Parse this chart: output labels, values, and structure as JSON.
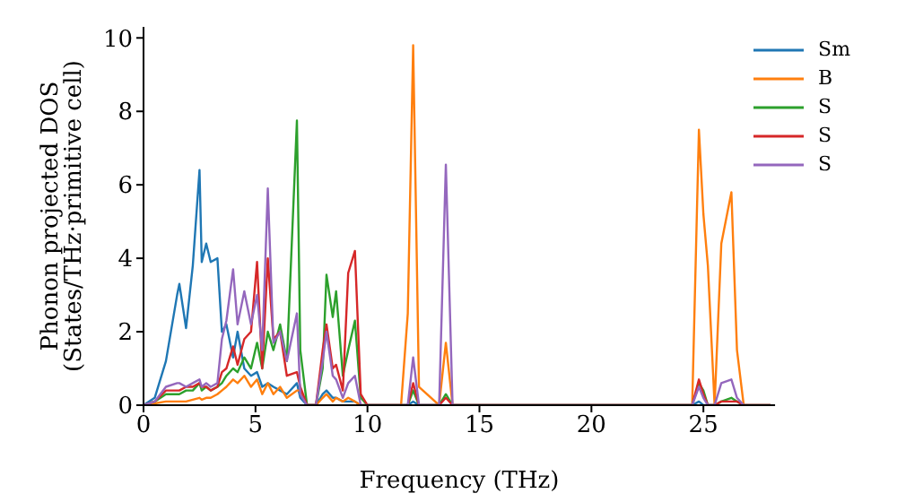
{
  "chart_data": {
    "type": "line",
    "xlabel": "Frequency (THz)",
    "ylabel": "Phonon projected DOS (States/THz·primitive cell)",
    "x": [
      0,
      0.5,
      1,
      1.5,
      1.6,
      1.9,
      2.2,
      2.5,
      2.6,
      2.8,
      3.0,
      3.3,
      3.5,
      3.7,
      4.0,
      4.2,
      4.5,
      4.8,
      5.07,
      5.3,
      5.55,
      5.8,
      6.1,
      6.4,
      6.85,
      7.0,
      7.3,
      7.7,
      8.0,
      8.17,
      8.45,
      8.6,
      8.9,
      9.14,
      9.44,
      9.7,
      10,
      11.5,
      11.8,
      12.04,
      12.3,
      13.2,
      13.5,
      13.8,
      24.2,
      24.5,
      24.8,
      25.0,
      25.2,
      25.5,
      25.8,
      26.25,
      26.5,
      26.8,
      28
    ],
    "series": [
      {
        "name": "Sm",
        "color": "#1f77b4",
        "values": [
          0,
          0.2,
          1.2,
          3.0,
          3.3,
          2.1,
          3.8,
          6.4,
          3.9,
          4.4,
          3.9,
          4.0,
          2.0,
          2.2,
          1.3,
          2.0,
          1.0,
          0.8,
          0.9,
          0.5,
          0.6,
          0.5,
          0.4,
          0.3,
          0.6,
          0.2,
          0,
          0,
          0.3,
          0.4,
          0.2,
          0.2,
          0.1,
          0.1,
          0.1,
          0,
          0,
          0,
          0,
          0.1,
          0,
          0,
          0,
          0,
          0,
          0,
          0.1,
          0,
          0,
          0,
          null,
          null,
          null,
          null,
          null
        ]
      },
      {
        "name": "B",
        "color": "#ff7f0e",
        "values": [
          0,
          0.05,
          0.1,
          0.1,
          0.1,
          0.1,
          0.15,
          0.2,
          0.15,
          0.2,
          0.2,
          0.3,
          0.4,
          0.5,
          0.7,
          0.6,
          0.8,
          0.5,
          0.7,
          0.3,
          0.6,
          0.3,
          0.5,
          0.2,
          0.4,
          0.4,
          0,
          0,
          0.2,
          0.3,
          0.1,
          0.2,
          0.1,
          0.2,
          0.1,
          0,
          0,
          0,
          2.5,
          9.8,
          0.5,
          0,
          1.7,
          0,
          0,
          0,
          7.5,
          5.2,
          3.8,
          0,
          4.4,
          5.8,
          1.5,
          0,
          0
        ]
      },
      {
        "name": "S",
        "color": "#2ca02c",
        "values": [
          0,
          0.1,
          0.3,
          0.3,
          0.3,
          0.4,
          0.4,
          0.6,
          0.4,
          0.5,
          0.4,
          0.5,
          0.6,
          0.8,
          1.0,
          0.9,
          1.3,
          1.0,
          1.7,
          1.0,
          2.0,
          1.5,
          2.2,
          1.2,
          7.75,
          1.5,
          0,
          0,
          1.0,
          3.55,
          2.4,
          3.1,
          0.8,
          1.5,
          2.3,
          0.2,
          0,
          0,
          0,
          0.4,
          0,
          0,
          0.3,
          0,
          0,
          0,
          0.6,
          0.4,
          0,
          0,
          0.1,
          0.2,
          0.1,
          0,
          0
        ]
      },
      {
        "name": "S",
        "color": "#d62728",
        "values": [
          0,
          0.1,
          0.4,
          0.4,
          0.4,
          0.5,
          0.5,
          0.6,
          0.5,
          0.5,
          0.4,
          0.5,
          0.9,
          1.0,
          1.6,
          1.1,
          1.8,
          2.0,
          3.9,
          1.0,
          4.0,
          1.8,
          2.0,
          0.8,
          0.9,
          0.5,
          0,
          0,
          1.5,
          2.2,
          1.0,
          1.1,
          0.4,
          3.6,
          4.2,
          0.3,
          0,
          0,
          0,
          0.6,
          0,
          0,
          0.2,
          0,
          0,
          0,
          0.7,
          0.3,
          0,
          0,
          0.1,
          0.1,
          0.1,
          0,
          0
        ]
      },
      {
        "name": "S",
        "color": "#9467bd",
        "values": [
          0,
          0.1,
          0.5,
          0.6,
          0.6,
          0.5,
          0.6,
          0.7,
          0.5,
          0.6,
          0.5,
          0.6,
          1.8,
          2.3,
          3.7,
          2.2,
          3.1,
          2.2,
          3.0,
          1.5,
          5.9,
          1.7,
          2.0,
          1.2,
          2.5,
          0.3,
          0,
          0,
          1.2,
          2.0,
          0.8,
          0.7,
          0.2,
          0.6,
          0.8,
          0,
          0,
          0,
          0,
          1.3,
          0,
          0,
          6.55,
          0,
          0,
          0,
          0.5,
          0.2,
          0,
          0,
          0.6,
          0.7,
          0.2,
          0,
          0
        ]
      }
    ],
    "xlim": [
      0,
      28.2
    ],
    "xticks": [
      0,
      5,
      10,
      15,
      20,
      25
    ],
    "ylim": [
      0,
      10.3
    ],
    "yticks": [
      0,
      2,
      4,
      6,
      8,
      10
    ],
    "legend": "top right",
    "grid": false,
    "marker": "none",
    "line_style": "solid"
  }
}
